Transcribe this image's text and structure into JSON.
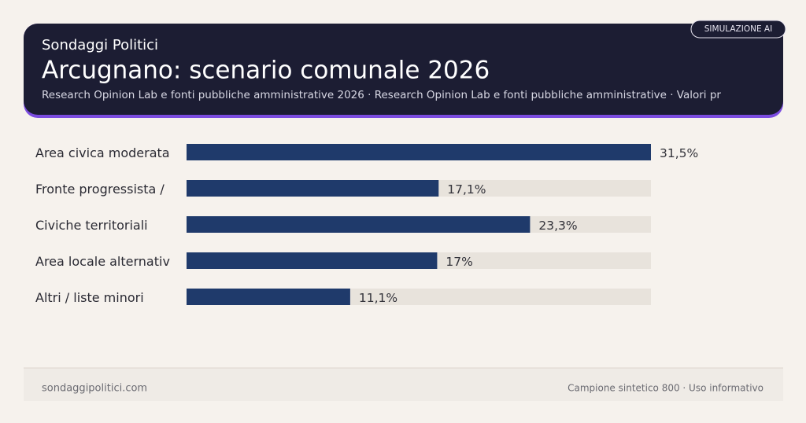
{
  "kicker": "Sondaggi Politici",
  "badge": "SIMULAZIONE AI",
  "chart_data": {
    "type": "bar",
    "orientation": "horizontal",
    "title": "Arcugnano: scenario comunale 2026",
    "subtitle": "Research Opinion Lab e fonti pubbliche amministrative 2026 · Research Opinion Lab e fonti pubbliche amministrative · Valori pr",
    "categories": [
      "Area civica moderata",
      "Fronte progressista /",
      "Civiche territoriali",
      "Area locale alternativ",
      "Altri / liste minori"
    ],
    "values": [
      31.5,
      17.1,
      23.3,
      17,
      11.1
    ],
    "value_labels": [
      "31,5%",
      "17,1%",
      "23,3%",
      "17%",
      "11,1%"
    ],
    "color": "#1f3a6b",
    "xlim": [
      0,
      31.5
    ]
  },
  "footer": {
    "left": "sondaggipolitici.com",
    "right": "Campione sintetico 800 · Uso informativo"
  }
}
